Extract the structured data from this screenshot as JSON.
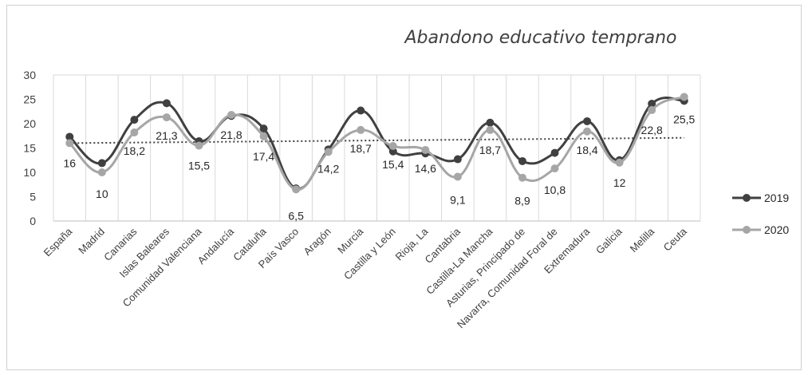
{
  "chart_data": {
    "type": "line",
    "title": "Abandono educativo temprano",
    "xlabel": "",
    "ylabel": "",
    "ylim": [
      0,
      30
    ],
    "yticks": [
      0,
      5,
      10,
      15,
      20,
      25,
      30
    ],
    "grid": "vertical",
    "legend": "right",
    "categories": [
      "España",
      "Madrid",
      "Canarias",
      "Islas Baleares",
      "Comunidad Valenciana",
      "Andalucía",
      "Cataluña",
      "País Vasco",
      "Aragón",
      "Murcia",
      "Castilla y León",
      "Rioja, La",
      "Cantabria",
      "Castilla-La Mancha",
      "Asturias, Principado de",
      "Navarra, Comunidad Foral de",
      "Extremadura",
      "Galicia",
      "Melilla",
      "Ceuta"
    ],
    "series": [
      {
        "name": "2019",
        "color": "#404040",
        "values": [
          17.3,
          11.9,
          20.8,
          24.2,
          16.4,
          21.6,
          19.0,
          6.7,
          14.7,
          22.7,
          14.3,
          13.9,
          12.7,
          20.2,
          12.3,
          14.0,
          20.5,
          12.5,
          24.1,
          24.7
        ]
      },
      {
        "name": "2020",
        "color": "#a6a6a6",
        "values": [
          16,
          10,
          18.2,
          21.3,
          15.5,
          21.8,
          17.4,
          6.5,
          14.2,
          18.7,
          15.4,
          14.6,
          9.1,
          18.7,
          8.9,
          10.8,
          18.4,
          12,
          22.8,
          25.5
        ],
        "data_labels": [
          "16",
          "10",
          "18,2",
          "21,3",
          "15,5",
          "21,8",
          "17,4",
          "6,5",
          "14,2",
          "18,7",
          "15,4",
          "14,6",
          "9,1",
          "18,7",
          "8,9",
          "10,8",
          "18,4",
          "12",
          "22,8",
          "25,5"
        ]
      }
    ],
    "trendline": {
      "style": "dotted",
      "color": "#404040",
      "start": 16.0,
      "end": 17.1
    }
  }
}
